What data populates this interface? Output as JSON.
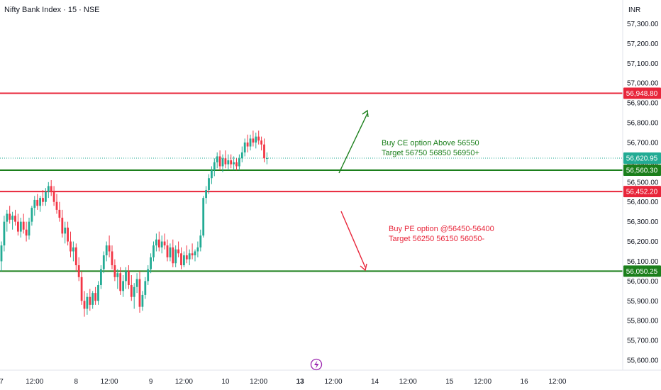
{
  "header": {
    "title": "Nifty Bank Index · 15 · NSE",
    "currency": "INR"
  },
  "colors": {
    "up": "#22ab94",
    "down": "#f23645",
    "green_line": "#1b7f1b",
    "red_line": "#e8253a",
    "last_price": "#22ab94",
    "lightning": "#9c27b0"
  },
  "chart_data": {
    "type": "candlestick",
    "title": "Nifty Bank Index · 15 · NSE",
    "ylim": [
      55550,
      57420
    ],
    "y_ticks": [
      "57,300.00",
      "57,200.00",
      "57,100.00",
      "57,000.00",
      "56,900.00",
      "56,800.00",
      "56,700.00",
      "56,600.00",
      "56,500.00",
      "56,400.00",
      "56,300.00",
      "56,200.00",
      "56,100.00",
      "56,000.00",
      "55,900.00",
      "55,800.00",
      "55,700.00",
      "55,600.00"
    ],
    "y_tick_values": [
      57300,
      57200,
      57100,
      57000,
      56900,
      56800,
      56700,
      56600,
      56500,
      56400,
      56300,
      56200,
      56100,
      56000,
      55900,
      55800,
      55700,
      55600
    ],
    "x_ticks": [
      {
        "label": "7",
        "bar": 0
      },
      {
        "label": "12:00",
        "bar": 12
      },
      {
        "label": "8",
        "bar": 27
      },
      {
        "label": "12:00",
        "bar": 39
      },
      {
        "label": "9",
        "bar": 54
      },
      {
        "label": "12:00",
        "bar": 66
      },
      {
        "label": "10",
        "bar": 81
      },
      {
        "label": "12:00",
        "bar": 93
      },
      {
        "label": "13",
        "bar": 108
      },
      {
        "label": "12:00",
        "bar": 120
      },
      {
        "label": "14",
        "bar": 135
      },
      {
        "label": "12:00",
        "bar": 147
      },
      {
        "label": "15",
        "bar": 162
      },
      {
        "label": "12:00",
        "bar": 174
      },
      {
        "label": "16",
        "bar": 189
      },
      {
        "label": "12:00",
        "bar": 201
      }
    ],
    "bold_x_tick": "13",
    "levels": [
      {
        "value": 56948.8,
        "label": "56,948.80",
        "color": "red"
      },
      {
        "value": 56560.3,
        "label": "56,560.30",
        "color": "green"
      },
      {
        "value": 56452.2,
        "label": "56,452.20",
        "color": "red"
      },
      {
        "value": 56050.25,
        "label": "56,050.25",
        "color": "green"
      }
    ],
    "last_price": {
      "value": 56620.95,
      "label": "56,620.95"
    },
    "annotations": {
      "buy_ce_line1": "Buy CE option Above 56550",
      "buy_ce_line2": "Target 56750 56850 56950+",
      "buy_pe_line1": "Buy PE option @56450-56400",
      "buy_pe_line2": "Target 56250 56150 56050-"
    },
    "candles": [
      {
        "o": 56100,
        "h": 56200,
        "l": 56050,
        "c": 56180
      },
      {
        "o": 56180,
        "h": 56330,
        "l": 56150,
        "c": 56300
      },
      {
        "o": 56300,
        "h": 56360,
        "l": 56250,
        "c": 56340
      },
      {
        "o": 56340,
        "h": 56380,
        "l": 56290,
        "c": 56310
      },
      {
        "o": 56310,
        "h": 56350,
        "l": 56260,
        "c": 56330
      },
      {
        "o": 56330,
        "h": 56360,
        "l": 56280,
        "c": 56300
      },
      {
        "o": 56300,
        "h": 56340,
        "l": 56230,
        "c": 56250
      },
      {
        "o": 56250,
        "h": 56320,
        "l": 56220,
        "c": 56300
      },
      {
        "o": 56300,
        "h": 56340,
        "l": 56240,
        "c": 56260
      },
      {
        "o": 56260,
        "h": 56300,
        "l": 56200,
        "c": 56230
      },
      {
        "o": 56230,
        "h": 56320,
        "l": 56210,
        "c": 56300
      },
      {
        "o": 56300,
        "h": 56380,
        "l": 56280,
        "c": 56370
      },
      {
        "o": 56370,
        "h": 56430,
        "l": 56330,
        "c": 56410
      },
      {
        "o": 56410,
        "h": 56440,
        "l": 56360,
        "c": 56380
      },
      {
        "o": 56380,
        "h": 56430,
        "l": 56350,
        "c": 56420
      },
      {
        "o": 56420,
        "h": 56460,
        "l": 56380,
        "c": 56400
      },
      {
        "o": 56400,
        "h": 56470,
        "l": 56380,
        "c": 56450
      },
      {
        "o": 56450,
        "h": 56500,
        "l": 56420,
        "c": 56480
      },
      {
        "o": 56480,
        "h": 56510,
        "l": 56430,
        "c": 56450
      },
      {
        "o": 56450,
        "h": 56480,
        "l": 56380,
        "c": 56400
      },
      {
        "o": 56400,
        "h": 56440,
        "l": 56340,
        "c": 56360
      },
      {
        "o": 56360,
        "h": 56400,
        "l": 56300,
        "c": 56320
      },
      {
        "o": 56320,
        "h": 56360,
        "l": 56220,
        "c": 56240
      },
      {
        "o": 56240,
        "h": 56300,
        "l": 56190,
        "c": 56270
      },
      {
        "o": 56270,
        "h": 56300,
        "l": 56180,
        "c": 56200
      },
      {
        "o": 56200,
        "h": 56250,
        "l": 56120,
        "c": 56150
      },
      {
        "o": 56150,
        "h": 56200,
        "l": 56100,
        "c": 56170
      },
      {
        "o": 56170,
        "h": 56190,
        "l": 56050,
        "c": 56080
      },
      {
        "o": 56080,
        "h": 56120,
        "l": 56000,
        "c": 56020
      },
      {
        "o": 56020,
        "h": 56050,
        "l": 55880,
        "c": 55900
      },
      {
        "o": 55900,
        "h": 55950,
        "l": 55820,
        "c": 55860
      },
      {
        "o": 55860,
        "h": 55940,
        "l": 55830,
        "c": 55920
      },
      {
        "o": 55920,
        "h": 55960,
        "l": 55850,
        "c": 55880
      },
      {
        "o": 55880,
        "h": 55950,
        "l": 55860,
        "c": 55940
      },
      {
        "o": 55940,
        "h": 55970,
        "l": 55880,
        "c": 55900
      },
      {
        "o": 55900,
        "h": 56000,
        "l": 55880,
        "c": 55980
      },
      {
        "o": 55980,
        "h": 56080,
        "l": 55960,
        "c": 56060
      },
      {
        "o": 56060,
        "h": 56150,
        "l": 56040,
        "c": 56130
      },
      {
        "o": 56130,
        "h": 56200,
        "l": 56100,
        "c": 56180
      },
      {
        "o": 56180,
        "h": 56230,
        "l": 56120,
        "c": 56150
      },
      {
        "o": 56150,
        "h": 56180,
        "l": 56060,
        "c": 56080
      },
      {
        "o": 56080,
        "h": 56110,
        "l": 56000,
        "c": 56020
      },
      {
        "o": 56020,
        "h": 56060,
        "l": 55960,
        "c": 56040
      },
      {
        "o": 56040,
        "h": 56070,
        "l": 55930,
        "c": 55950
      },
      {
        "o": 55950,
        "h": 56030,
        "l": 55920,
        "c": 56000
      },
      {
        "o": 56000,
        "h": 56070,
        "l": 55960,
        "c": 56050
      },
      {
        "o": 56050,
        "h": 56080,
        "l": 55960,
        "c": 55980
      },
      {
        "o": 55980,
        "h": 56030,
        "l": 55900,
        "c": 55920
      },
      {
        "o": 55920,
        "h": 55990,
        "l": 55860,
        "c": 55970
      },
      {
        "o": 55970,
        "h": 56040,
        "l": 55940,
        "c": 56010
      },
      {
        "o": 56010,
        "h": 56050,
        "l": 55840,
        "c": 55870
      },
      {
        "o": 55870,
        "h": 55950,
        "l": 55850,
        "c": 55930
      },
      {
        "o": 55930,
        "h": 56020,
        "l": 55910,
        "c": 56000
      },
      {
        "o": 56000,
        "h": 56080,
        "l": 55980,
        "c": 56060
      },
      {
        "o": 56060,
        "h": 56140,
        "l": 56040,
        "c": 56120
      },
      {
        "o": 56120,
        "h": 56200,
        "l": 56100,
        "c": 56180
      },
      {
        "o": 56180,
        "h": 56240,
        "l": 56150,
        "c": 56210
      },
      {
        "o": 56210,
        "h": 56250,
        "l": 56150,
        "c": 56170
      },
      {
        "o": 56170,
        "h": 56230,
        "l": 56140,
        "c": 56200
      },
      {
        "o": 56200,
        "h": 56240,
        "l": 56160,
        "c": 56180
      },
      {
        "o": 56180,
        "h": 56210,
        "l": 56100,
        "c": 56120
      },
      {
        "o": 56120,
        "h": 56190,
        "l": 56100,
        "c": 56170
      },
      {
        "o": 56170,
        "h": 56210,
        "l": 56070,
        "c": 56090
      },
      {
        "o": 56090,
        "h": 56180,
        "l": 56070,
        "c": 56160
      },
      {
        "o": 56160,
        "h": 56200,
        "l": 56120,
        "c": 56140
      },
      {
        "o": 56140,
        "h": 56170,
        "l": 56060,
        "c": 56080
      },
      {
        "o": 56080,
        "h": 56150,
        "l": 56070,
        "c": 56130
      },
      {
        "o": 56130,
        "h": 56180,
        "l": 56090,
        "c": 56110
      },
      {
        "o": 56110,
        "h": 56160,
        "l": 56080,
        "c": 56140
      },
      {
        "o": 56140,
        "h": 56190,
        "l": 56110,
        "c": 56130
      },
      {
        "o": 56130,
        "h": 56160,
        "l": 56100,
        "c": 56150
      },
      {
        "o": 56150,
        "h": 56200,
        "l": 56120,
        "c": 56170
      },
      {
        "o": 56170,
        "h": 56260,
        "l": 56150,
        "c": 56230
      },
      {
        "o": 56230,
        "h": 56430,
        "l": 56220,
        "c": 56420
      },
      {
        "o": 56420,
        "h": 56480,
        "l": 56390,
        "c": 56460
      },
      {
        "o": 56460,
        "h": 56540,
        "l": 56440,
        "c": 56520
      },
      {
        "o": 56520,
        "h": 56580,
        "l": 56490,
        "c": 56560
      },
      {
        "o": 56560,
        "h": 56620,
        "l": 56530,
        "c": 56600
      },
      {
        "o": 56600,
        "h": 56650,
        "l": 56570,
        "c": 56630
      },
      {
        "o": 56630,
        "h": 56660,
        "l": 56560,
        "c": 56580
      },
      {
        "o": 56580,
        "h": 56640,
        "l": 56550,
        "c": 56620
      },
      {
        "o": 56620,
        "h": 56660,
        "l": 56570,
        "c": 56590
      },
      {
        "o": 56590,
        "h": 56640,
        "l": 56560,
        "c": 56610
      },
      {
        "o": 56610,
        "h": 56640,
        "l": 56570,
        "c": 56590
      },
      {
        "o": 56590,
        "h": 56630,
        "l": 56560,
        "c": 56600
      },
      {
        "o": 56600,
        "h": 56620,
        "l": 56560,
        "c": 56580
      },
      {
        "o": 56580,
        "h": 56640,
        "l": 56560,
        "c": 56620
      },
      {
        "o": 56620,
        "h": 56680,
        "l": 56600,
        "c": 56650
      },
      {
        "o": 56650,
        "h": 56720,
        "l": 56630,
        "c": 56700
      },
      {
        "o": 56700,
        "h": 56740,
        "l": 56650,
        "c": 56680
      },
      {
        "o": 56680,
        "h": 56740,
        "l": 56660,
        "c": 56720
      },
      {
        "o": 56720,
        "h": 56760,
        "l": 56680,
        "c": 56700
      },
      {
        "o": 56700,
        "h": 56750,
        "l": 56670,
        "c": 56730
      },
      {
        "o": 56730,
        "h": 56760,
        "l": 56690,
        "c": 56710
      },
      {
        "o": 56710,
        "h": 56730,
        "l": 56660,
        "c": 56690
      },
      {
        "o": 56690,
        "h": 56720,
        "l": 56600,
        "c": 56620
      },
      {
        "o": 56620,
        "h": 56650,
        "l": 56590,
        "c": 56621
      }
    ]
  }
}
